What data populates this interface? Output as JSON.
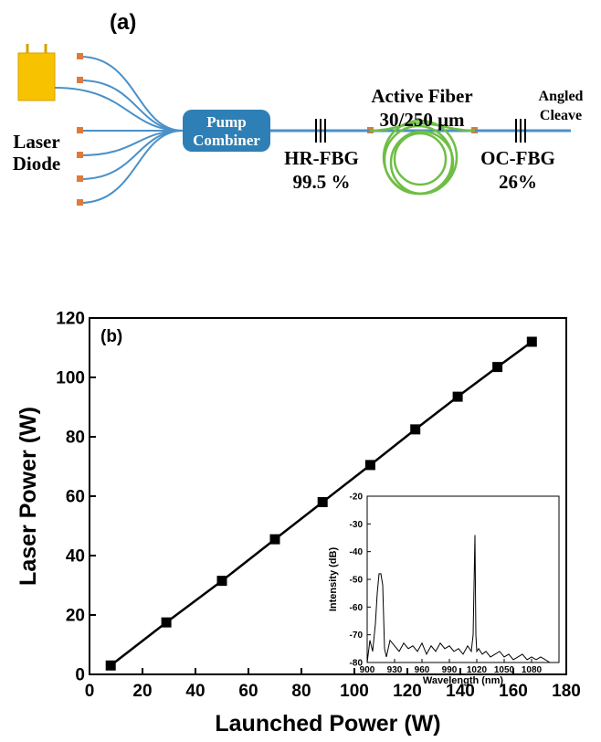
{
  "diagram": {
    "panel_label": "(a)",
    "laser_diode": [
      "Laser",
      "Diode"
    ],
    "pump_combiner": [
      "Pump",
      "Combiner"
    ],
    "hr_fbg": [
      "HR-FBG",
      "99.5 %"
    ],
    "active_fiber": [
      "Active Fiber",
      "30/250 μm"
    ],
    "oc_fbg": [
      "OC-FBG",
      "26%"
    ],
    "output": [
      "Angled",
      "Cleave"
    ]
  },
  "chart_data": [
    {
      "type": "line",
      "annotation": "(b)",
      "x_label": "Launched Power (W)",
      "y_label": "Laser Power (W)",
      "xlim": [
        0,
        180
      ],
      "xticks": [
        0,
        20,
        40,
        60,
        80,
        100,
        120,
        140,
        160,
        180
      ],
      "ylim": [
        0,
        120
      ],
      "yticks": [
        0,
        20,
        40,
        60,
        80,
        100,
        120
      ],
      "marker": "square",
      "x": [
        8,
        29,
        50,
        70,
        88,
        106,
        123,
        139,
        154,
        167
      ],
      "series": [
        {
          "color": "#000000",
          "values": [
            3,
            17.5,
            31.5,
            45.5,
            58,
            70.5,
            82.5,
            93.5,
            103.5,
            112
          ]
        }
      ]
    },
    {
      "type": "line",
      "x_label": "Wavelength (nm)",
      "y_label": "Intensity (dB)",
      "xlim": [
        900,
        1110
      ],
      "xticks": [
        900,
        930,
        960,
        990,
        1020,
        1050,
        1080
      ],
      "ylim": [
        -80,
        -20
      ],
      "yticks": [
        -80,
        -70,
        -60,
        -50,
        -40,
        -30,
        -20
      ],
      "x": [
        900,
        903,
        906,
        909,
        911,
        913,
        915,
        917,
        919,
        921,
        925,
        930,
        935,
        940,
        945,
        950,
        955,
        960,
        965,
        970,
        975,
        980,
        985,
        990,
        995,
        1000,
        1005,
        1010,
        1014,
        1016,
        1018,
        1019,
        1020,
        1022,
        1026,
        1030,
        1035,
        1040,
        1045,
        1050,
        1055,
        1060,
        1065,
        1070,
        1075,
        1080,
        1085,
        1090,
        1095,
        1100
      ],
      "series": [
        {
          "color": "#000000",
          "values": [
            -80,
            -72,
            -76,
            -66,
            -55,
            -48,
            -48,
            -52,
            -75,
            -78,
            -72,
            -74,
            -76,
            -73,
            -75,
            -74,
            -76,
            -73,
            -77,
            -74,
            -76,
            -73,
            -75,
            -74,
            -76,
            -75,
            -77,
            -74,
            -76,
            -70,
            -34,
            -70,
            -76,
            -75,
            -77,
            -76,
            -78,
            -77,
            -76,
            -78,
            -77,
            -79,
            -78,
            -77,
            -79,
            -78,
            -79,
            -78,
            -79,
            -80
          ]
        }
      ]
    }
  ]
}
